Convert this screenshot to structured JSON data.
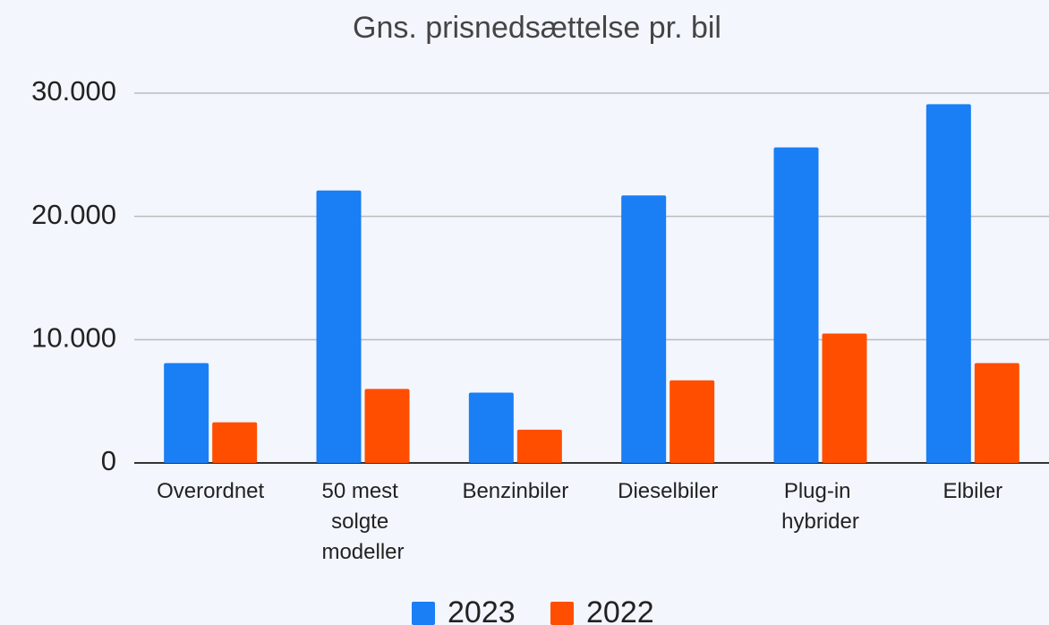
{
  "chart_data": {
    "type": "bar",
    "title": "Gns. prisnedsættelse pr. bil",
    "categories": [
      "Overordnet",
      "50 mest solgte modeller",
      "Benzinbiler",
      "Dieselbiler",
      "Plug-in hybrider",
      "Elbiler"
    ],
    "series": [
      {
        "name": "2023",
        "color": "#1a7ef5",
        "values": [
          8100,
          22100,
          5700,
          21700,
          25600,
          29100
        ]
      },
      {
        "name": "2022",
        "color": "#ff4e00",
        "values": [
          3300,
          6000,
          2700,
          6700,
          10500,
          8100
        ]
      }
    ],
    "ylim": [
      0,
      30000
    ],
    "yticks": [
      0,
      {
        "value": 10000,
        "label": "10.000"
      },
      {
        "value": 20000,
        "label": "20.000"
      },
      {
        "value": 30000,
        "label": "30.000"
      }
    ],
    "grid": true,
    "legend": "bottom"
  }
}
